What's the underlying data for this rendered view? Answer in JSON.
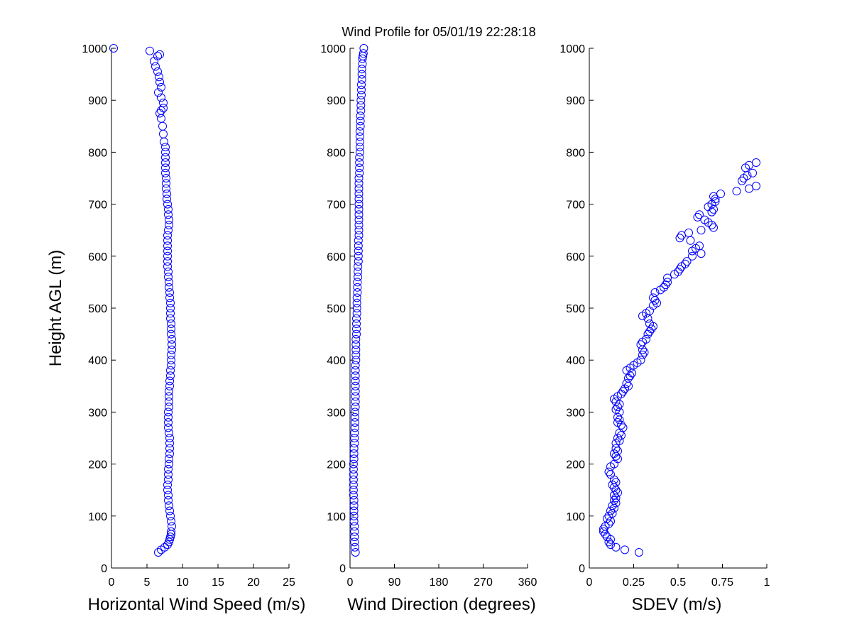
{
  "figure": {
    "title": "Wind Profile for  05/01/19 22:28:18",
    "shared_ylabel": "Height AGL (m)"
  },
  "chart_data": [
    {
      "type": "scatter",
      "name": "speed",
      "xlabel": "Horizontal Wind Speed (m/s)",
      "ylabel": "Height AGL (m)",
      "xlim": [
        0,
        25
      ],
      "ylim": [
        0,
        1000
      ],
      "xticks": [
        "0",
        "5",
        "10",
        "15",
        "20",
        "25"
      ],
      "yticks": [
        "0",
        "100",
        "200",
        "300",
        "400",
        "500",
        "600",
        "700",
        "800",
        "900",
        "1000"
      ],
      "grid": false,
      "marker": "open-circle",
      "color": "#0000ff",
      "points": [
        [
          6.6,
          30
        ],
        [
          7.0,
          35
        ],
        [
          7.5,
          40
        ],
        [
          7.9,
          45
        ],
        [
          8.1,
          50
        ],
        [
          8.2,
          55
        ],
        [
          8.3,
          60
        ],
        [
          8.4,
          65
        ],
        [
          8.4,
          70
        ],
        [
          8.5,
          80
        ],
        [
          8.4,
          90
        ],
        [
          8.3,
          100
        ],
        [
          8.2,
          110
        ],
        [
          8.1,
          120
        ],
        [
          8.0,
          130
        ],
        [
          8.0,
          140
        ],
        [
          7.9,
          150
        ],
        [
          7.9,
          160
        ],
        [
          8.0,
          170
        ],
        [
          8.0,
          180
        ],
        [
          8.0,
          190
        ],
        [
          8.1,
          200
        ],
        [
          8.1,
          210
        ],
        [
          8.2,
          220
        ],
        [
          8.2,
          230
        ],
        [
          8.2,
          240
        ],
        [
          8.2,
          250
        ],
        [
          8.1,
          260
        ],
        [
          8.0,
          270
        ],
        [
          8.0,
          280
        ],
        [
          8.0,
          290
        ],
        [
          8.0,
          300
        ],
        [
          8.1,
          310
        ],
        [
          8.1,
          320
        ],
        [
          8.1,
          330
        ],
        [
          8.1,
          340
        ],
        [
          8.2,
          350
        ],
        [
          8.2,
          360
        ],
        [
          8.3,
          370
        ],
        [
          8.3,
          380
        ],
        [
          8.4,
          390
        ],
        [
          8.4,
          400
        ],
        [
          8.4,
          410
        ],
        [
          8.5,
          420
        ],
        [
          8.5,
          430
        ],
        [
          8.5,
          440
        ],
        [
          8.4,
          450
        ],
        [
          8.4,
          460
        ],
        [
          8.4,
          470
        ],
        [
          8.3,
          480
        ],
        [
          8.3,
          490
        ],
        [
          8.3,
          500
        ],
        [
          8.3,
          510
        ],
        [
          8.2,
          520
        ],
        [
          8.2,
          530
        ],
        [
          8.1,
          540
        ],
        [
          8.1,
          550
        ],
        [
          8.0,
          560
        ],
        [
          8.0,
          570
        ],
        [
          7.9,
          580
        ],
        [
          7.9,
          590
        ],
        [
          7.9,
          600
        ],
        [
          7.9,
          610
        ],
        [
          7.9,
          620
        ],
        [
          7.9,
          630
        ],
        [
          7.9,
          640
        ],
        [
          8.0,
          650
        ],
        [
          8.1,
          660
        ],
        [
          8.1,
          670
        ],
        [
          8.0,
          680
        ],
        [
          8.0,
          690
        ],
        [
          7.9,
          700
        ],
        [
          7.8,
          710
        ],
        [
          7.8,
          720
        ],
        [
          7.7,
          730
        ],
        [
          7.7,
          740
        ],
        [
          7.7,
          750
        ],
        [
          7.6,
          760
        ],
        [
          7.6,
          770
        ],
        [
          7.6,
          780
        ],
        [
          7.6,
          790
        ],
        [
          7.6,
          800
        ],
        [
          7.6,
          810
        ],
        [
          7.4,
          820
        ],
        [
          7.3,
          835
        ],
        [
          7.2,
          850
        ],
        [
          7.0,
          865
        ],
        [
          6.8,
          875
        ],
        [
          7.0,
          880
        ],
        [
          7.3,
          885
        ],
        [
          7.3,
          895
        ],
        [
          7.0,
          905
        ],
        [
          6.6,
          915
        ],
        [
          7.0,
          925
        ],
        [
          6.8,
          935
        ],
        [
          6.7,
          945
        ],
        [
          6.5,
          955
        ],
        [
          6.2,
          965
        ],
        [
          6.0,
          975
        ],
        [
          6.5,
          985
        ],
        [
          6.8,
          988
        ],
        [
          5.4,
          995
        ],
        [
          0.3,
          1000
        ]
      ]
    },
    {
      "type": "scatter",
      "name": "direction",
      "xlabel": "Wind Direction (degrees)",
      "xlim": [
        0,
        360
      ],
      "ylim": [
        0,
        1000
      ],
      "xticks": [
        "0",
        "90",
        "180",
        "270",
        "360"
      ],
      "yticks": [
        "0",
        "100",
        "200",
        "300",
        "400",
        "500",
        "600",
        "700",
        "800",
        "900",
        "1000"
      ],
      "grid": false,
      "marker": "open-circle",
      "color": "#0000ff",
      "points": [
        [
          11,
          30
        ],
        [
          10,
          40
        ],
        [
          9,
          50
        ],
        [
          9,
          60
        ],
        [
          9,
          70
        ],
        [
          9,
          80
        ],
        [
          8,
          90
        ],
        [
          8,
          100
        ],
        [
          8,
          110
        ],
        [
          8,
          120
        ],
        [
          8,
          130
        ],
        [
          7,
          140
        ],
        [
          7,
          150
        ],
        [
          7,
          160
        ],
        [
          7,
          170
        ],
        [
          7,
          180
        ],
        [
          7,
          190
        ],
        [
          7,
          200
        ],
        [
          8,
          210
        ],
        [
          8,
          220
        ],
        [
          8,
          230
        ],
        [
          9,
          240
        ],
        [
          9,
          250
        ],
        [
          9,
          260
        ],
        [
          10,
          270
        ],
        [
          10,
          280
        ],
        [
          10,
          290
        ],
        [
          10,
          300
        ],
        [
          11,
          310
        ],
        [
          11,
          320
        ],
        [
          11,
          330
        ],
        [
          11,
          340
        ],
        [
          11,
          350
        ],
        [
          11,
          360
        ],
        [
          11,
          370
        ],
        [
          11,
          380
        ],
        [
          11,
          390
        ],
        [
          12,
          400
        ],
        [
          12,
          410
        ],
        [
          12,
          420
        ],
        [
          12,
          430
        ],
        [
          12,
          440
        ],
        [
          13,
          450
        ],
        [
          13,
          460
        ],
        [
          13,
          470
        ],
        [
          13,
          480
        ],
        [
          14,
          490
        ],
        [
          14,
          500
        ],
        [
          14,
          510
        ],
        [
          14,
          520
        ],
        [
          15,
          530
        ],
        [
          15,
          540
        ],
        [
          15,
          550
        ],
        [
          16,
          560
        ],
        [
          16,
          570
        ],
        [
          16,
          580
        ],
        [
          17,
          590
        ],
        [
          17,
          600
        ],
        [
          17,
          610
        ],
        [
          17,
          620
        ],
        [
          17,
          630
        ],
        [
          18,
          640
        ],
        [
          18,
          650
        ],
        [
          18,
          660
        ],
        [
          18,
          670
        ],
        [
          18,
          680
        ],
        [
          18,
          690
        ],
        [
          18,
          700
        ],
        [
          18,
          710
        ],
        [
          18,
          720
        ],
        [
          18,
          730
        ],
        [
          18,
          740
        ],
        [
          18,
          750
        ],
        [
          19,
          760
        ],
        [
          19,
          770
        ],
        [
          19,
          780
        ],
        [
          19,
          790
        ],
        [
          20,
          800
        ],
        [
          20,
          810
        ],
        [
          20,
          820
        ],
        [
          20,
          830
        ],
        [
          20,
          840
        ],
        [
          21,
          850
        ],
        [
          21,
          860
        ],
        [
          21,
          870
        ],
        [
          22,
          880
        ],
        [
          22,
          890
        ],
        [
          22,
          900
        ],
        [
          23,
          910
        ],
        [
          23,
          920
        ],
        [
          23,
          930
        ],
        [
          24,
          940
        ],
        [
          24,
          950
        ],
        [
          24,
          960
        ],
        [
          25,
          970
        ],
        [
          25,
          980
        ],
        [
          26,
          985
        ],
        [
          27,
          990
        ],
        [
          28,
          1000
        ]
      ]
    },
    {
      "type": "scatter",
      "name": "sdev",
      "xlabel": "SDEV  (m/s)",
      "xlim": [
        0,
        1
      ],
      "ylim": [
        0,
        1000
      ],
      "xticks": [
        "0",
        "0.25",
        "0.5",
        "0.75",
        "1"
      ],
      "yticks": [
        "0",
        "100",
        "200",
        "300",
        "400",
        "500",
        "600",
        "700",
        "800",
        "900",
        "1000"
      ],
      "grid": false,
      "marker": "open-circle",
      "color": "#0000ff",
      "points": [
        [
          0.28,
          30
        ],
        [
          0.2,
          35
        ],
        [
          0.15,
          40
        ],
        [
          0.12,
          45
        ],
        [
          0.11,
          50
        ],
        [
          0.12,
          55
        ],
        [
          0.1,
          60
        ],
        [
          0.09,
          65
        ],
        [
          0.08,
          70
        ],
        [
          0.08,
          75
        ],
        [
          0.09,
          80
        ],
        [
          0.11,
          85
        ],
        [
          0.12,
          90
        ],
        [
          0.1,
          95
        ],
        [
          0.11,
          100
        ],
        [
          0.13,
          105
        ],
        [
          0.12,
          110
        ],
        [
          0.14,
          115
        ],
        [
          0.13,
          120
        ],
        [
          0.15,
          125
        ],
        [
          0.14,
          130
        ],
        [
          0.15,
          135
        ],
        [
          0.14,
          140
        ],
        [
          0.16,
          145
        ],
        [
          0.15,
          150
        ],
        [
          0.14,
          155
        ],
        [
          0.13,
          160
        ],
        [
          0.15,
          165
        ],
        [
          0.14,
          170
        ],
        [
          0.12,
          180
        ],
        [
          0.11,
          185
        ],
        [
          0.12,
          195
        ],
        [
          0.14,
          200
        ],
        [
          0.16,
          210
        ],
        [
          0.15,
          215
        ],
        [
          0.14,
          220
        ],
        [
          0.16,
          225
        ],
        [
          0.15,
          230
        ],
        [
          0.15,
          240
        ],
        [
          0.17,
          245
        ],
        [
          0.16,
          250
        ],
        [
          0.18,
          255
        ],
        [
          0.17,
          260
        ],
        [
          0.19,
          270
        ],
        [
          0.18,
          275
        ],
        [
          0.16,
          280
        ],
        [
          0.17,
          285
        ],
        [
          0.16,
          290
        ],
        [
          0.17,
          300
        ],
        [
          0.15,
          305
        ],
        [
          0.16,
          310
        ],
        [
          0.17,
          315
        ],
        [
          0.15,
          320
        ],
        [
          0.14,
          325
        ],
        [
          0.16,
          330
        ],
        [
          0.18,
          335
        ],
        [
          0.19,
          340
        ],
        [
          0.2,
          345
        ],
        [
          0.22,
          350
        ],
        [
          0.21,
          355
        ],
        [
          0.22,
          365
        ],
        [
          0.23,
          370
        ],
        [
          0.24,
          375
        ],
        [
          0.21,
          380
        ],
        [
          0.23,
          385
        ],
        [
          0.25,
          390
        ],
        [
          0.27,
          395
        ],
        [
          0.29,
          400
        ],
        [
          0.3,
          410
        ],
        [
          0.31,
          415
        ],
        [
          0.3,
          420
        ],
        [
          0.29,
          430
        ],
        [
          0.3,
          435
        ],
        [
          0.32,
          440
        ],
        [
          0.33,
          450
        ],
        [
          0.34,
          455
        ],
        [
          0.35,
          460
        ],
        [
          0.36,
          465
        ],
        [
          0.34,
          470
        ],
        [
          0.33,
          480
        ],
        [
          0.3,
          485
        ],
        [
          0.32,
          490
        ],
        [
          0.34,
          495
        ],
        [
          0.36,
          505
        ],
        [
          0.38,
          510
        ],
        [
          0.37,
          515
        ],
        [
          0.36,
          520
        ],
        [
          0.37,
          530
        ],
        [
          0.4,
          535
        ],
        [
          0.42,
          540
        ],
        [
          0.43,
          545
        ],
        [
          0.44,
          550
        ],
        [
          0.44,
          558
        ],
        [
          0.48,
          565
        ],
        [
          0.5,
          570
        ],
        [
          0.51,
          575
        ],
        [
          0.52,
          580
        ],
        [
          0.54,
          585
        ],
        [
          0.55,
          590
        ],
        [
          0.58,
          600
        ],
        [
          0.63,
          605
        ],
        [
          0.58,
          610
        ],
        [
          0.6,
          615
        ],
        [
          0.62,
          620
        ],
        [
          0.57,
          630
        ],
        [
          0.51,
          635
        ],
        [
          0.52,
          640
        ],
        [
          0.56,
          645
        ],
        [
          0.63,
          650
        ],
        [
          0.7,
          655
        ],
        [
          0.69,
          660
        ],
        [
          0.67,
          665
        ],
        [
          0.65,
          670
        ],
        [
          0.61,
          675
        ],
        [
          0.62,
          680
        ],
        [
          0.69,
          685
        ],
        [
          0.7,
          690
        ],
        [
          0.67,
          695
        ],
        [
          0.69,
          700
        ],
        [
          0.71,
          705
        ],
        [
          0.71,
          710
        ],
        [
          0.7,
          715
        ],
        [
          0.74,
          720
        ],
        [
          0.83,
          725
        ],
        [
          0.9,
          730
        ],
        [
          0.94,
          735
        ],
        [
          0.86,
          745
        ],
        [
          0.87,
          750
        ],
        [
          0.89,
          755
        ],
        [
          0.92,
          760
        ],
        [
          0.88,
          770
        ],
        [
          0.9,
          775
        ],
        [
          0.94,
          780
        ]
      ]
    }
  ]
}
